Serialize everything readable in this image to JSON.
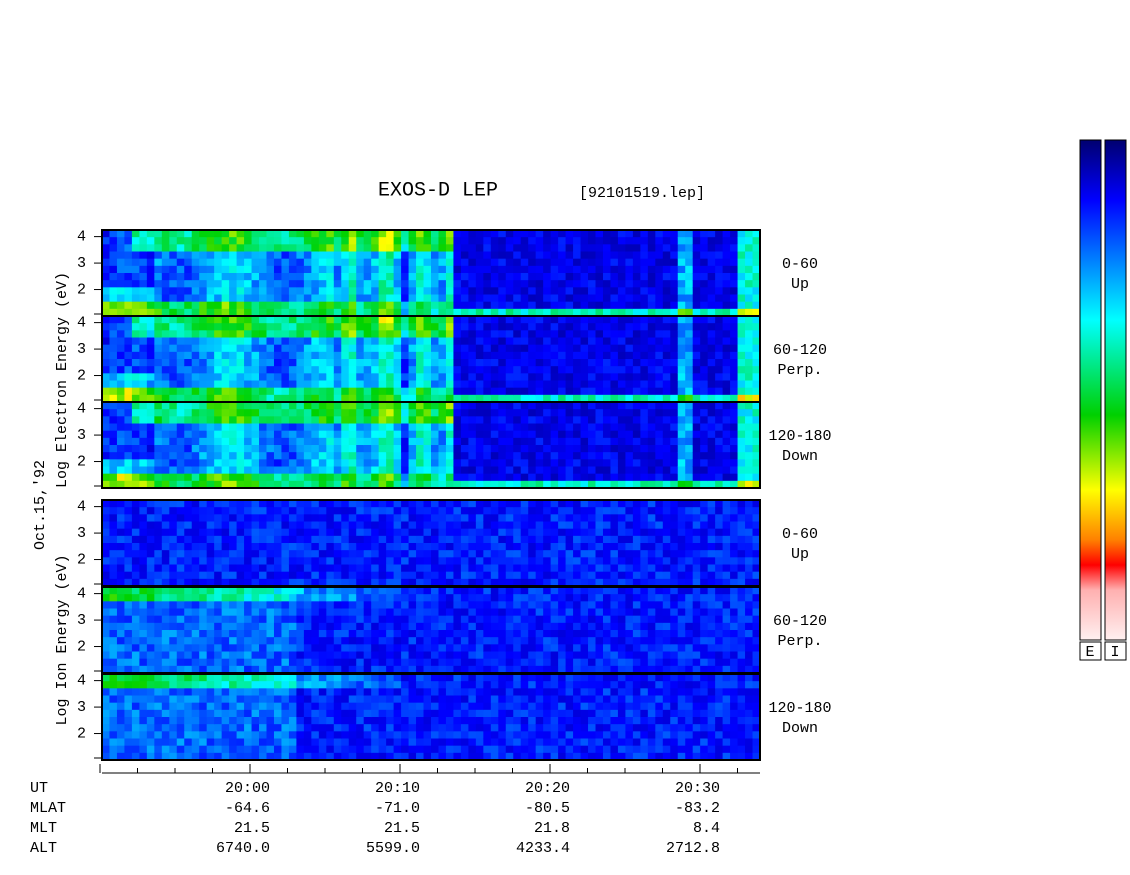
{
  "header": {
    "title": "EXOS-D LEP",
    "file": "[92101519.lep]"
  },
  "axis_labels": {
    "electron": "Log  Electron  Energy (eV)",
    "date": "Oct.15,'92",
    "ion": "Log  Ion  Energy (eV)"
  },
  "yticks": [
    2,
    3,
    4
  ],
  "panels": [
    {
      "species": "electron",
      "angle": "0-60",
      "direction": "Up"
    },
    {
      "species": "electron",
      "angle": "60-120",
      "direction": "Perp."
    },
    {
      "species": "electron",
      "angle": "120-180",
      "direction": "Down"
    },
    {
      "species": "ion",
      "angle": "0-60",
      "direction": "Up"
    },
    {
      "species": "ion",
      "angle": "60-120",
      "direction": "Perp."
    },
    {
      "species": "ion",
      "angle": "120-180",
      "direction": "Down"
    }
  ],
  "ephemeris": {
    "rows": [
      {
        "label": "UT",
        "values": [
          "20:00",
          "20:10",
          "20:20",
          "20:30"
        ]
      },
      {
        "label": "MLAT",
        "values": [
          "-64.6",
          "-71.0",
          "-80.5",
          "-83.2"
        ]
      },
      {
        "label": "MLT",
        "values": [
          "21.5",
          "21.5",
          "21.8",
          "8.4"
        ]
      },
      {
        "label": "ALT",
        "values": [
          "6740.0",
          "5599.0",
          "4233.4",
          "2712.8"
        ]
      }
    ]
  },
  "colorbars": [
    "E",
    "I"
  ]
}
